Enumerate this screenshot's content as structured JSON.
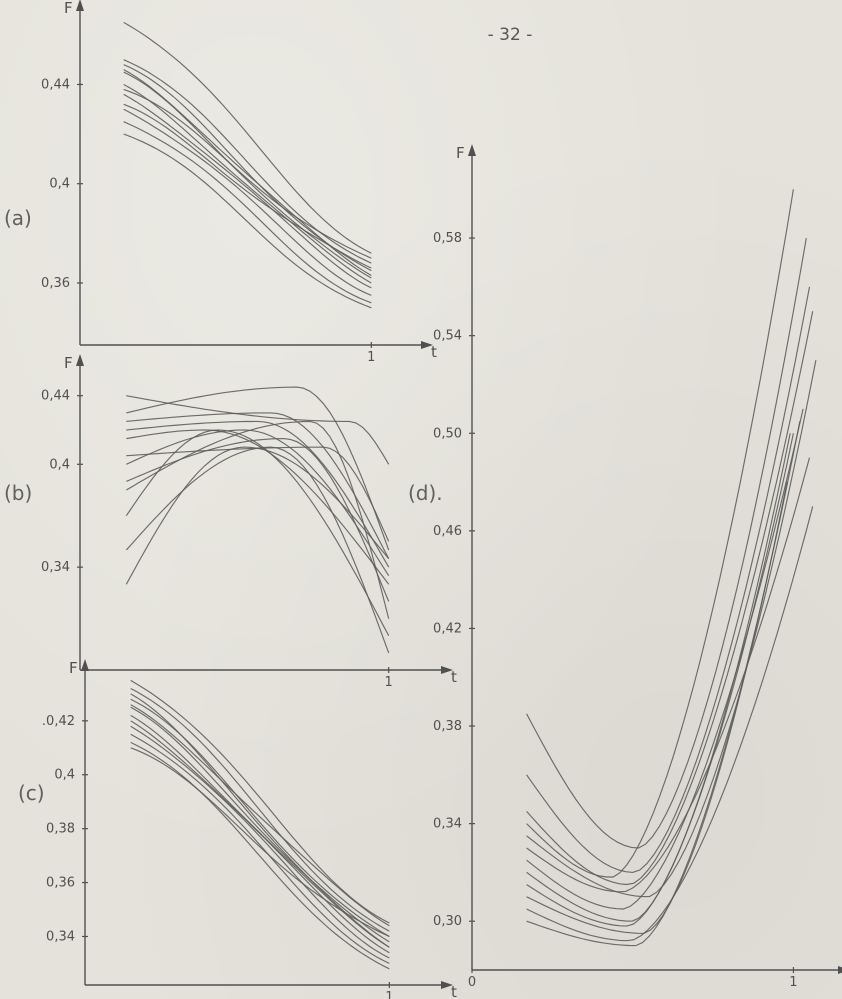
{
  "page_number": "- 32 -",
  "colors": {
    "ink": "#5d5d5d",
    "paper": "#e4e2da"
  },
  "chart_data": [
    {
      "panel_label": "(a)",
      "type": "line",
      "ylabel": "F",
      "xlabel": "t",
      "ylim": [
        0.335,
        0.468
      ],
      "xlim": [
        0,
        1.15
      ],
      "x_tick_labels": [
        {
          "x": 1,
          "label": "1"
        }
      ],
      "y_tick_labels": [
        {
          "y": 0.44,
          "label": "0,44"
        },
        {
          "y": 0.4,
          "label": "0,4"
        },
        {
          "y": 0.36,
          "label": "0,36"
        }
      ],
      "series_count": 12,
      "series_shape": "decreasing",
      "y_start": [
        0.465,
        0.45,
        0.448,
        0.445,
        0.44,
        0.436,
        0.43,
        0.425,
        0.42,
        0.438,
        0.432,
        0.446
      ],
      "y_end": [
        0.372,
        0.368,
        0.365,
        0.362,
        0.36,
        0.358,
        0.355,
        0.352,
        0.35,
        0.37,
        0.366,
        0.363
      ]
    },
    {
      "panel_label": "(b)",
      "type": "line",
      "ylabel": "F",
      "xlabel": "t",
      "ylim": [
        0.28,
        0.455
      ],
      "xlim": [
        0,
        1.15
      ],
      "x_tick_labels": [
        {
          "x": 1,
          "label": "1"
        }
      ],
      "y_tick_labels": [
        {
          "y": 0.44,
          "label": "0,44"
        },
        {
          "y": 0.4,
          "label": "0,4"
        },
        {
          "y": 0.34,
          "label": "0,34"
        }
      ],
      "series_count": 12,
      "series_shape": "hump",
      "y_start": [
        0.44,
        0.43,
        0.425,
        0.42,
        0.4,
        0.39,
        0.385,
        0.37,
        0.35,
        0.33,
        0.415,
        0.405
      ],
      "peak_t": [
        0.85,
        0.65,
        0.55,
        0.5,
        0.45,
        0.6,
        0.7,
        0.35,
        0.55,
        0.45,
        0.3,
        0.75
      ],
      "peak_y": [
        0.425,
        0.445,
        0.43,
        0.425,
        0.42,
        0.415,
        0.425,
        0.42,
        0.41,
        0.41,
        0.42,
        0.41
      ],
      "y_end": [
        0.4,
        0.35,
        0.345,
        0.34,
        0.335,
        0.32,
        0.31,
        0.3,
        0.29,
        0.345,
        0.33,
        0.355
      ]
    },
    {
      "panel_label": "(c)",
      "type": "line",
      "ylabel": "F",
      "xlabel": "t",
      "ylim": [
        0.322,
        0.437
      ],
      "xlim": [
        0,
        1.15
      ],
      "x_tick_labels": [
        {
          "x": 1,
          "label": "1"
        }
      ],
      "y_tick_labels": [
        {
          "y": 0.42,
          "label": ".0,42"
        },
        {
          "y": 0.4,
          "label": "0,4"
        },
        {
          "y": 0.38,
          "label": "0,38"
        },
        {
          "y": 0.36,
          "label": "0,36"
        },
        {
          "y": 0.34,
          "label": "0,34"
        }
      ],
      "series_count": 12,
      "series_shape": "decreasing",
      "y_start": [
        0.435,
        0.432,
        0.428,
        0.425,
        0.422,
        0.42,
        0.418,
        0.415,
        0.412,
        0.41,
        0.43,
        0.426
      ],
      "y_end": [
        0.345,
        0.342,
        0.34,
        0.338,
        0.336,
        0.334,
        0.332,
        0.33,
        0.328,
        0.34,
        0.336,
        0.344
      ]
    },
    {
      "panel_label": "(d).",
      "type": "line",
      "ylabel": "F",
      "xlabel": "t",
      "ylim": [
        0.28,
        0.612
      ],
      "xlim": [
        0,
        1.12
      ],
      "x_tick_labels": [
        {
          "x": 0,
          "label": "0"
        },
        {
          "x": 1,
          "label": "1"
        }
      ],
      "y_tick_labels": [
        {
          "y": 0.58,
          "label": "0,58"
        },
        {
          "y": 0.54,
          "label": "0,54"
        },
        {
          "y": 0.5,
          "label": "0,50"
        },
        {
          "y": 0.46,
          "label": "0,46"
        },
        {
          "y": 0.42,
          "label": "0,42"
        },
        {
          "y": 0.38,
          "label": "0,38"
        },
        {
          "y": 0.34,
          "label": "0,34"
        },
        {
          "y": 0.3,
          "label": "0,30"
        }
      ],
      "series_count": 12,
      "series_shape": "valley",
      "x_start": 0.17,
      "y_start": [
        0.385,
        0.36,
        0.345,
        0.335,
        0.325,
        0.32,
        0.315,
        0.31,
        0.305,
        0.3,
        0.33,
        0.34
      ],
      "min_t": [
        0.4,
        0.38,
        0.36,
        0.42,
        0.35,
        0.4,
        0.38,
        0.45,
        0.36,
        0.4,
        0.34,
        0.32
      ],
      "min_y": [
        0.33,
        0.32,
        0.315,
        0.31,
        0.305,
        0.3,
        0.298,
        0.295,
        0.292,
        0.29,
        0.312,
        0.318
      ],
      "x_end": [
        1.04,
        1.05,
        1.06,
        1.07,
        1.03,
        0.99,
        1.0,
        0.98,
        1.06,
        1.02,
        1.05,
        1.0
      ],
      "y_end": [
        0.58,
        0.56,
        0.55,
        0.53,
        0.51,
        0.5,
        0.5,
        0.48,
        0.47,
        0.505,
        0.49,
        0.6
      ]
    }
  ]
}
